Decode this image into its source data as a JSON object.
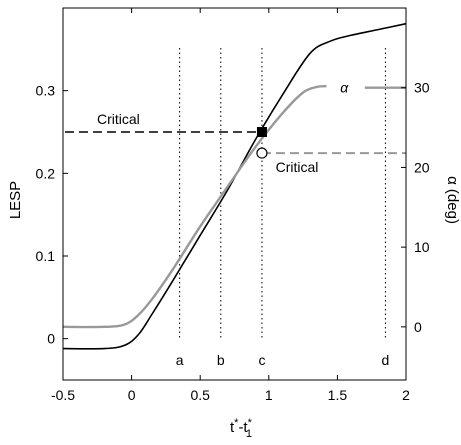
{
  "chart_data": {
    "type": "line",
    "xlabel_base": "t",
    "xlabel_sup1": "*",
    "xlabel_minus": "-t",
    "xlabel_sup2": "*",
    "xlabel_sub2": "1",
    "ylabel_left": "LESP",
    "ylabel_right": "α (deg)",
    "xlim": [
      -0.5,
      2
    ],
    "ylim_left": [
      -0.05,
      0.4
    ],
    "ylim_right": [
      -6.6667,
      40
    ],
    "xticks": [
      -0.5,
      0,
      0.5,
      1,
      1.5,
      2
    ],
    "xtick_labels": [
      "-0.5",
      "0",
      "0.5",
      "1",
      "1.5",
      "2"
    ],
    "yticks_left": [
      0,
      0.1,
      0.2,
      0.3
    ],
    "ytick_labels_left": [
      "0",
      "0.1",
      "0.2",
      "0.3"
    ],
    "yticks_right": [
      0,
      10,
      20,
      30
    ],
    "ytick_labels_right": [
      "0",
      "10",
      "20",
      "30"
    ],
    "grid": false,
    "series": [
      {
        "axis": "left",
        "color": "#000000",
        "x": [
          -0.5,
          -0.2,
          -0.05,
          0.05,
          0.15,
          0.3,
          0.5,
          0.7,
          0.9,
          1.1,
          1.3,
          1.45,
          1.6,
          1.8,
          2.0
        ],
        "y": [
          -0.012,
          -0.012,
          -0.008,
          0.005,
          0.03,
          0.07,
          0.125,
          0.18,
          0.24,
          0.295,
          0.345,
          0.36,
          0.367,
          0.374,
          0.381
        ]
      },
      {
        "name": "α",
        "axis": "right",
        "color": "#999999",
        "x": [
          -0.5,
          -0.2,
          -0.05,
          0.05,
          0.15,
          0.3,
          0.5,
          0.7,
          0.9,
          1.1,
          1.25,
          1.35,
          1.42
        ],
        "y": [
          0,
          0,
          0.3,
          1.5,
          3.5,
          7.2,
          12.6,
          17.6,
          22.5,
          26.8,
          29.4,
          30.1,
          30.2
        ]
      },
      {
        "axis": "right",
        "color": "#999999",
        "x": [
          1.7,
          2.0
        ],
        "y": [
          30,
          30
        ]
      }
    ],
    "critical_lesp": {
      "label": "Critical",
      "x_marker": 0.95,
      "y": 0.25,
      "color": "#000000"
    },
    "critical_alpha": {
      "label": "Critical",
      "x_marker": 0.95,
      "y": 21.8,
      "color": "#999999"
    },
    "alpha_label": "α",
    "alpha_label_x": 1.55,
    "alpha_label_y": 30,
    "markers": [
      {
        "label": "a",
        "x": 0.35
      },
      {
        "label": "b",
        "x": 0.65
      },
      {
        "label": "c",
        "x": 0.95
      },
      {
        "label": "d",
        "x": 1.85
      }
    ]
  }
}
